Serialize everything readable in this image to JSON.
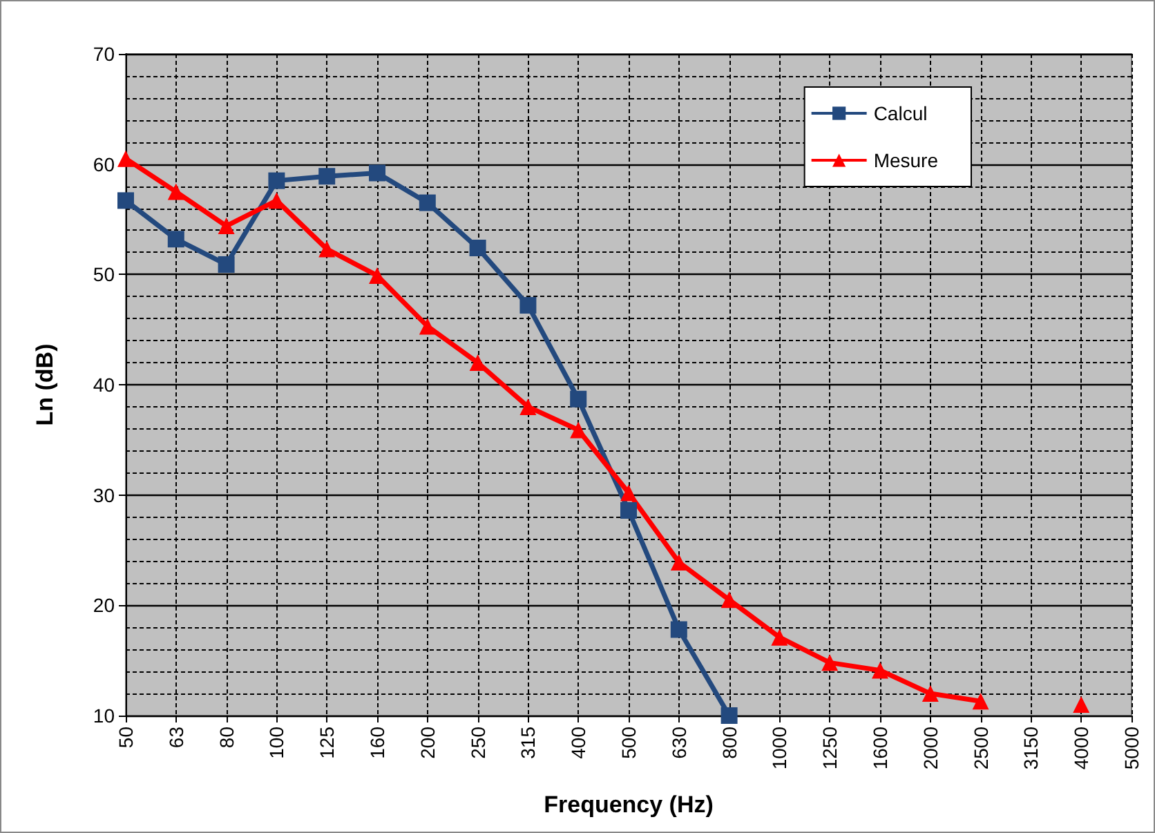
{
  "chart_data": {
    "type": "line",
    "xlabel": "Frequency (Hz)",
    "ylabel": "Ln (dB)",
    "categories": [
      "50",
      "63",
      "80",
      "100",
      "125",
      "160",
      "200",
      "250",
      "315",
      "400",
      "500",
      "630",
      "800",
      "1000",
      "1250",
      "1600",
      "2000",
      "2500",
      "3150",
      "4000",
      "5000"
    ],
    "series": [
      {
        "name": "Calcul",
        "color": "#23497e",
        "marker": "square",
        "values": [
          56.7,
          53.2,
          50.9,
          58.5,
          58.9,
          59.2,
          56.5,
          52.4,
          47.2,
          38.7,
          28.6,
          17.8,
          10,
          null,
          null,
          null,
          null,
          null,
          null,
          null,
          null
        ]
      },
      {
        "name": "Mesure",
        "color": "#ff0000",
        "marker": "triangle",
        "values": [
          60.5,
          57.5,
          54.4,
          56.7,
          52.3,
          49.9,
          45.3,
          42.0,
          38.0,
          35.9,
          30.2,
          23.9,
          20.5,
          17.1,
          14.8,
          14.1,
          12.0,
          11.3,
          null,
          11.0,
          null
        ]
      }
    ],
    "ylim": [
      10,
      70
    ],
    "yticks": [
      10,
      20,
      30,
      40,
      50,
      60,
      70
    ],
    "grid": true,
    "legend": "top right",
    "line_style": "solid"
  }
}
